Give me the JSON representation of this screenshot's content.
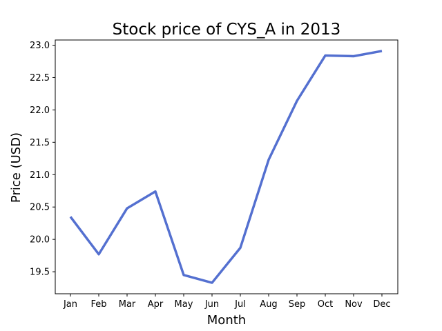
{
  "chart_data": {
    "type": "line",
    "title": "Stock price of CYS_A in 2013",
    "xlabel": "Month",
    "ylabel": "Price (USD)",
    "categories": [
      "Jan",
      "Feb",
      "Mar",
      "Apr",
      "May",
      "Jun",
      "Jul",
      "Aug",
      "Sep",
      "Oct",
      "Nov",
      "Dec"
    ],
    "series": [
      {
        "values": [
          20.35,
          19.77,
          20.48,
          20.74,
          19.45,
          19.33,
          19.87,
          21.23,
          22.14,
          22.84,
          22.83,
          22.91
        ],
        "color": "#5470d0"
      }
    ],
    "ylim": [
      19.16,
      23.08
    ],
    "yticks": [
      19.5,
      20.0,
      20.5,
      21.0,
      21.5,
      22.0,
      22.5,
      23.0
    ],
    "ytick_labels": [
      "19.5",
      "20.0",
      "20.5",
      "21.0",
      "21.5",
      "22.0",
      "22.5",
      "23.0"
    ],
    "grid": false,
    "legend": false
  }
}
